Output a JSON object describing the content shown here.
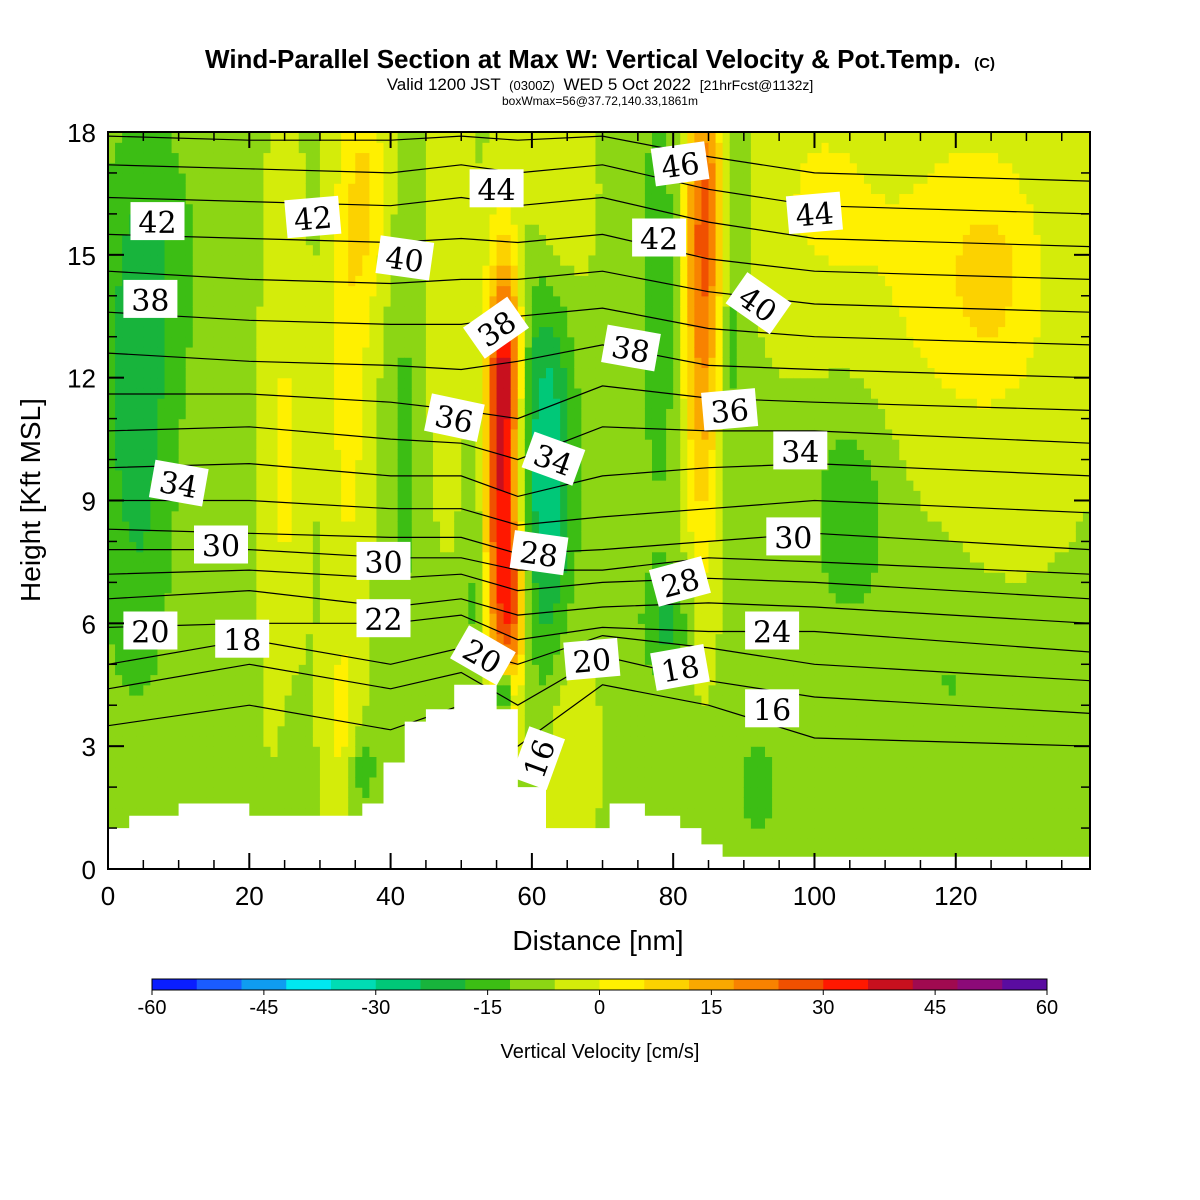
{
  "header": {
    "title": "Wind-Parallel Section at Max W: Vertical Velocity & Pot.Temp.",
    "copyright": "(C)",
    "subtitle_main": "Valid 1200 JST",
    "subtitle_z": "(0300Z)",
    "subtitle_date": "WED 5 Oct 2022",
    "subtitle_fcst": "[21hrFcst@1132z]",
    "boxinfo": "boxWmax=56@37.72,140.33,1861m"
  },
  "chart_data": {
    "type": "heatmap",
    "title": "Wind-Parallel Section at Max W: Vertical Velocity & Pot.Temp.",
    "xlabel": "Distance [nm]",
    "ylabel": "Height [Kft MSL]",
    "xlim": [
      0,
      139
    ],
    "ylim": [
      0,
      18
    ],
    "x_ticks": [
      0,
      20,
      40,
      60,
      80,
      100,
      120
    ],
    "x_tick_labels": [
      "0",
      "20",
      "40",
      "60",
      "80",
      "100",
      "120"
    ],
    "y_ticks": [
      0,
      3,
      6,
      9,
      12,
      15,
      18
    ],
    "y_tick_labels": [
      "0",
      "3",
      "6",
      "9",
      "12",
      "15",
      "18"
    ],
    "colorbar": {
      "label": "Vertical Velocity [cm/s]",
      "min": -60,
      "max": 60,
      "step": 7.5,
      "tick_values": [
        -60,
        -45,
        -30,
        -15,
        0,
        15,
        30,
        45,
        60
      ],
      "tick_labels": [
        "-60",
        "-45",
        "-30",
        "-15",
        "0",
        "15",
        "30",
        "45",
        "60"
      ],
      "colors": [
        "#0a1eff",
        "#1a5cff",
        "#0f9cf0",
        "#00e8f0",
        "#00dcb4",
        "#00c878",
        "#18b43c",
        "#3cbe14",
        "#8cd614",
        "#d4ec0a",
        "#fff000",
        "#fcd200",
        "#faa800",
        "#f88200",
        "#f05000",
        "#ff1800",
        "#c8101e",
        "#a00a50",
        "#8c0a78",
        "#5a0ca0"
      ]
    },
    "terrain": {
      "x": [
        0,
        3,
        3,
        10,
        10,
        20,
        20,
        36,
        36,
        39,
        39,
        42,
        42,
        45,
        45,
        49,
        49,
        55,
        55,
        58,
        58,
        62,
        62,
        71,
        71,
        76,
        76,
        81,
        81,
        84,
        84,
        87,
        87,
        139
      ],
      "top": [
        1,
        1,
        1.3,
        1.3,
        1.6,
        1.6,
        1.3,
        1.3,
        1.6,
        1.6,
        2.6,
        2.6,
        3.6,
        3.6,
        3.9,
        3.9,
        4.5,
        4.5,
        3.9,
        3.9,
        2.0,
        2.0,
        1.0,
        1.0,
        1.6,
        1.6,
        1.3,
        1.3,
        1.0,
        1.0,
        0.6,
        0.6,
        0.3,
        0.3
      ]
    },
    "w_features": [
      {
        "x": 55.5,
        "y": 9.0,
        "sx": 1.8,
        "sy": 3.6,
        "w": 50
      },
      {
        "x": 56.5,
        "y": 12.5,
        "sx": 1.5,
        "sy": 1.8,
        "w": 30
      },
      {
        "x": 57.5,
        "y": 6.5,
        "sx": 1.4,
        "sy": 1.5,
        "w": 25
      },
      {
        "x": 84.0,
        "y": 13.5,
        "sx": 1.8,
        "sy": 4.0,
        "w": 32
      },
      {
        "x": 85.0,
        "y": 16.5,
        "sx": 2.0,
        "sy": 2.0,
        "w": 18
      },
      {
        "x": 62.0,
        "y": 9.8,
        "sx": 2.8,
        "sy": 3.5,
        "w": -28
      },
      {
        "x": 52.5,
        "y": 7.0,
        "sx": 1.2,
        "sy": 2.5,
        "w": -14
      },
      {
        "x": 56.0,
        "y": 4.3,
        "sx": 0.8,
        "sy": 0.4,
        "w": -45
      },
      {
        "x": 4.0,
        "y": 10.5,
        "sx": 4.0,
        "sy": 4.5,
        "w": -16
      },
      {
        "x": 7.0,
        "y": 15.0,
        "sx": 5.0,
        "sy": 2.5,
        "w": -8
      },
      {
        "x": 105.0,
        "y": 8.8,
        "sx": 4.0,
        "sy": 2.0,
        "w": -12
      },
      {
        "x": 78.0,
        "y": 14.0,
        "sx": 2.0,
        "sy": 4.0,
        "w": -12
      },
      {
        "x": 88.5,
        "y": 14.5,
        "sx": 1.2,
        "sy": 4.0,
        "w": -10
      },
      {
        "x": 42.0,
        "y": 10.0,
        "sx": 1.5,
        "sy": 4.0,
        "w": -8
      },
      {
        "x": 36.0,
        "y": 2.5,
        "sx": 1.5,
        "sy": 0.8,
        "w": -12
      },
      {
        "x": 26.5,
        "y": 2.5,
        "sx": 1.5,
        "sy": 1.5,
        "w": -8
      },
      {
        "x": 79.0,
        "y": 6.0,
        "sx": 2.5,
        "sy": 1.0,
        "w": -14
      },
      {
        "x": 92.0,
        "y": 2.0,
        "sx": 3.0,
        "sy": 1.2,
        "w": -8
      },
      {
        "x": 120.0,
        "y": 4.5,
        "sx": 8.0,
        "sy": 0.8,
        "w": -6
      },
      {
        "x": 34.0,
        "y": 13.0,
        "sx": 2.0,
        "sy": 5.0,
        "w": 14
      },
      {
        "x": 37.0,
        "y": 16.5,
        "sx": 2.0,
        "sy": 2.0,
        "w": 14
      },
      {
        "x": 48.0,
        "y": 15.0,
        "sx": 2.0,
        "sy": 4.0,
        "w": 8
      },
      {
        "x": 25.0,
        "y": 10.0,
        "sx": 2.0,
        "sy": 5.0,
        "w": 10
      },
      {
        "x": 65.0,
        "y": 3.0,
        "sx": 2.5,
        "sy": 2.0,
        "w": 10
      },
      {
        "x": 33.0,
        "y": 3.5,
        "sx": 2.0,
        "sy": 1.5,
        "w": 10
      },
      {
        "x": 63.5,
        "y": 16.5,
        "sx": 3.0,
        "sy": 2.0,
        "w": 12
      },
      {
        "x": 120.0,
        "y": 14.0,
        "sx": 12.0,
        "sy": 4.0,
        "w": 12
      },
      {
        "x": 125.0,
        "y": 14.5,
        "sx": 4.0,
        "sy": 1.5,
        "w": 10
      },
      {
        "x": 100.0,
        "y": 16.5,
        "sx": 6.0,
        "sy": 2.0,
        "w": 8
      },
      {
        "x": 115.0,
        "y": 9.0,
        "sx": 8.0,
        "sy": 3.0,
        "w": -3
      }
    ],
    "theta_contours": [
      {
        "x": [
          0,
          20,
          40,
          50,
          58,
          70,
          85,
          100,
          139
        ],
        "y": [
          3.5,
          4.0,
          3.4,
          4.0,
          3.0,
          4.5,
          4.0,
          3.2,
          3.0
        ],
        "label": "16",
        "lx": 61,
        "ly": 2.7,
        "rot": -70
      },
      {
        "x": [
          0,
          20,
          40,
          50,
          58,
          70,
          85,
          100,
          139
        ],
        "y": [
          4.4,
          5.0,
          4.4,
          4.8,
          4.0,
          5.2,
          4.6,
          4.2,
          3.8
        ],
        "label": "16",
        "lx": 94,
        "ly": 3.9,
        "rot": 0
      },
      {
        "x": [
          0,
          20,
          40,
          50,
          58,
          70,
          85,
          100,
          139
        ],
        "y": [
          5.0,
          5.6,
          5.0,
          5.4,
          5.0,
          5.7,
          5.4,
          5.0,
          4.6
        ],
        "label": "18",
        "lx": 19,
        "ly": 5.6,
        "rot": 0
      },
      {
        "x": [
          0,
          20,
          40,
          50,
          58,
          70,
          85,
          100,
          139
        ],
        "y": [
          5.9,
          6.0,
          6.0,
          6.2,
          5.6,
          5.9,
          5.8,
          5.8,
          5.3
        ],
        "label": "20",
        "lx": 6,
        "ly": 5.8,
        "rot": 0
      },
      {
        "x": [
          0,
          20,
          40,
          50,
          58,
          70,
          85,
          100,
          139
        ],
        "y": [
          6.6,
          6.8,
          6.4,
          6.6,
          6.2,
          6.4,
          6.5,
          6.4,
          6.0
        ],
        "label": "22",
        "lx": 39,
        "ly": 6.1,
        "rot": 0
      },
      {
        "x": [
          0,
          20,
          40,
          50,
          58,
          70,
          85,
          100,
          139
        ],
        "y": [
          7.2,
          7.3,
          7.1,
          7.2,
          6.8,
          7.0,
          7.1,
          7.0,
          6.6
        ],
        "label": "24",
        "lx": 94,
        "ly": 5.8,
        "rot": 0
      },
      {
        "x": [
          0,
          20,
          40,
          50,
          58,
          70,
          85,
          100,
          139
        ],
        "y": [
          7.8,
          7.8,
          7.6,
          7.6,
          7.3,
          7.3,
          7.6,
          7.5,
          7.2
        ],
        "label": "28",
        "lx": 81,
        "ly": 7.0,
        "rot": -15
      },
      {
        "x": [
          0,
          20,
          40,
          50,
          58,
          70,
          85,
          100,
          139
        ],
        "y": [
          8.3,
          8.2,
          8.1,
          8.1,
          7.7,
          7.8,
          8.0,
          8.2,
          7.8
        ],
        "label": "30",
        "lx": 16,
        "ly": 7.9,
        "rot": 0
      },
      {
        "x": [
          0,
          20,
          40,
          50,
          58,
          70,
          85,
          100,
          139
        ],
        "y": [
          9.0,
          9.0,
          8.8,
          8.8,
          8.4,
          8.6,
          8.8,
          9.0,
          8.7
        ],
        "label": "30",
        "lx": 97,
        "ly": 8.1,
        "rot": 0
      },
      {
        "x": [
          0,
          20,
          40,
          50,
          58,
          70,
          85,
          100,
          139
        ],
        "y": [
          9.8,
          9.9,
          9.6,
          9.6,
          9.1,
          9.6,
          9.8,
          9.9,
          9.6
        ],
        "label": "34",
        "lx": 10,
        "ly": 9.4,
        "rot": 10
      },
      {
        "x": [
          0,
          20,
          40,
          50,
          58,
          70,
          85,
          100,
          139
        ],
        "y": [
          10.7,
          10.8,
          10.5,
          10.4,
          10.0,
          10.8,
          10.7,
          10.7,
          10.4
        ],
        "label": "34",
        "lx": 98,
        "ly": 10.2,
        "rot": 0
      },
      {
        "x": [
          0,
          20,
          40,
          50,
          58,
          70,
          85,
          100,
          139
        ],
        "y": [
          11.6,
          11.6,
          11.4,
          11.2,
          11.0,
          11.8,
          11.5,
          11.4,
          11.2
        ],
        "label": "36",
        "lx": 49,
        "ly": 11.0,
        "rot": 12
      },
      {
        "x": [
          0,
          20,
          40,
          50,
          58,
          70,
          85,
          100,
          139
        ],
        "y": [
          12.6,
          12.4,
          12.3,
          12.2,
          12.4,
          12.8,
          12.3,
          12.2,
          12.0
        ],
        "label": "38",
        "lx": 74,
        "ly": 12.7,
        "rot": 10
      },
      {
        "x": [
          0,
          20,
          40,
          50,
          58,
          70,
          85,
          100,
          139
        ],
        "y": [
          13.6,
          13.4,
          13.3,
          13.3,
          13.5,
          13.7,
          13.2,
          13.0,
          12.8
        ],
        "label": "38",
        "lx": 6,
        "ly": 13.9,
        "rot": 0
      },
      {
        "x": [
          0,
          20,
          40,
          50,
          58,
          70,
          85,
          100,
          139
        ],
        "y": [
          14.6,
          14.4,
          14.3,
          14.4,
          14.4,
          14.6,
          14.1,
          13.8,
          13.6
        ],
        "label": "40",
        "lx": 42,
        "ly": 14.9,
        "rot": 8
      },
      {
        "x": [
          0,
          20,
          40,
          50,
          58,
          70,
          85,
          100,
          139
        ],
        "y": [
          15.5,
          15.4,
          15.3,
          15.4,
          15.3,
          15.5,
          14.9,
          14.6,
          14.4
        ],
        "label": "42",
        "lx": 7,
        "ly": 15.8,
        "rot": 0
      },
      {
        "x": [
          0,
          20,
          40,
          50,
          58,
          70,
          85,
          100,
          139
        ],
        "y": [
          16.4,
          16.3,
          16.2,
          16.4,
          16.2,
          16.4,
          15.8,
          15.4,
          15.2
        ],
        "label": "42",
        "lx": 78,
        "ly": 15.4,
        "rot": 0
      },
      {
        "x": [
          0,
          20,
          40,
          50,
          58,
          70,
          85,
          100,
          139
        ],
        "y": [
          17.2,
          17.1,
          17.0,
          17.2,
          17.0,
          17.2,
          16.6,
          16.2,
          16.0
        ],
        "label": "44",
        "lx": 55,
        "ly": 16.6,
        "rot": 0
      },
      {
        "x": [
          0,
          20,
          40,
          50,
          58,
          70,
          85,
          100,
          139
        ],
        "y": [
          17.9,
          17.8,
          17.8,
          17.9,
          17.8,
          17.9,
          17.4,
          17.0,
          16.8
        ],
        "label": "46",
        "lx": 81,
        "ly": 17.2,
        "rot": -8
      }
    ],
    "contour_labels": [
      {
        "text": "42",
        "x": 29,
        "y": 15.9,
        "rot": -5
      },
      {
        "text": "44",
        "x": 100,
        "y": 16.0,
        "rot": -5
      },
      {
        "text": "40",
        "x": 92,
        "y": 13.8,
        "rot": 35
      },
      {
        "text": "38",
        "x": 55,
        "y": 13.2,
        "rot": -35
      },
      {
        "text": "34",
        "x": 63,
        "y": 10.0,
        "rot": 20
      },
      {
        "text": "36",
        "x": 88,
        "y": 11.2,
        "rot": -5
      },
      {
        "text": "30",
        "x": 39,
        "y": 7.5,
        "rot": 0
      },
      {
        "text": "28",
        "x": 61,
        "y": 7.7,
        "rot": 8
      },
      {
        "text": "20",
        "x": 53,
        "y": 5.2,
        "rot": 30
      },
      {
        "text": "20",
        "x": 68.5,
        "y": 5.1,
        "rot": -5
      },
      {
        "text": "18",
        "x": 81,
        "y": 4.9,
        "rot": -10
      }
    ]
  }
}
